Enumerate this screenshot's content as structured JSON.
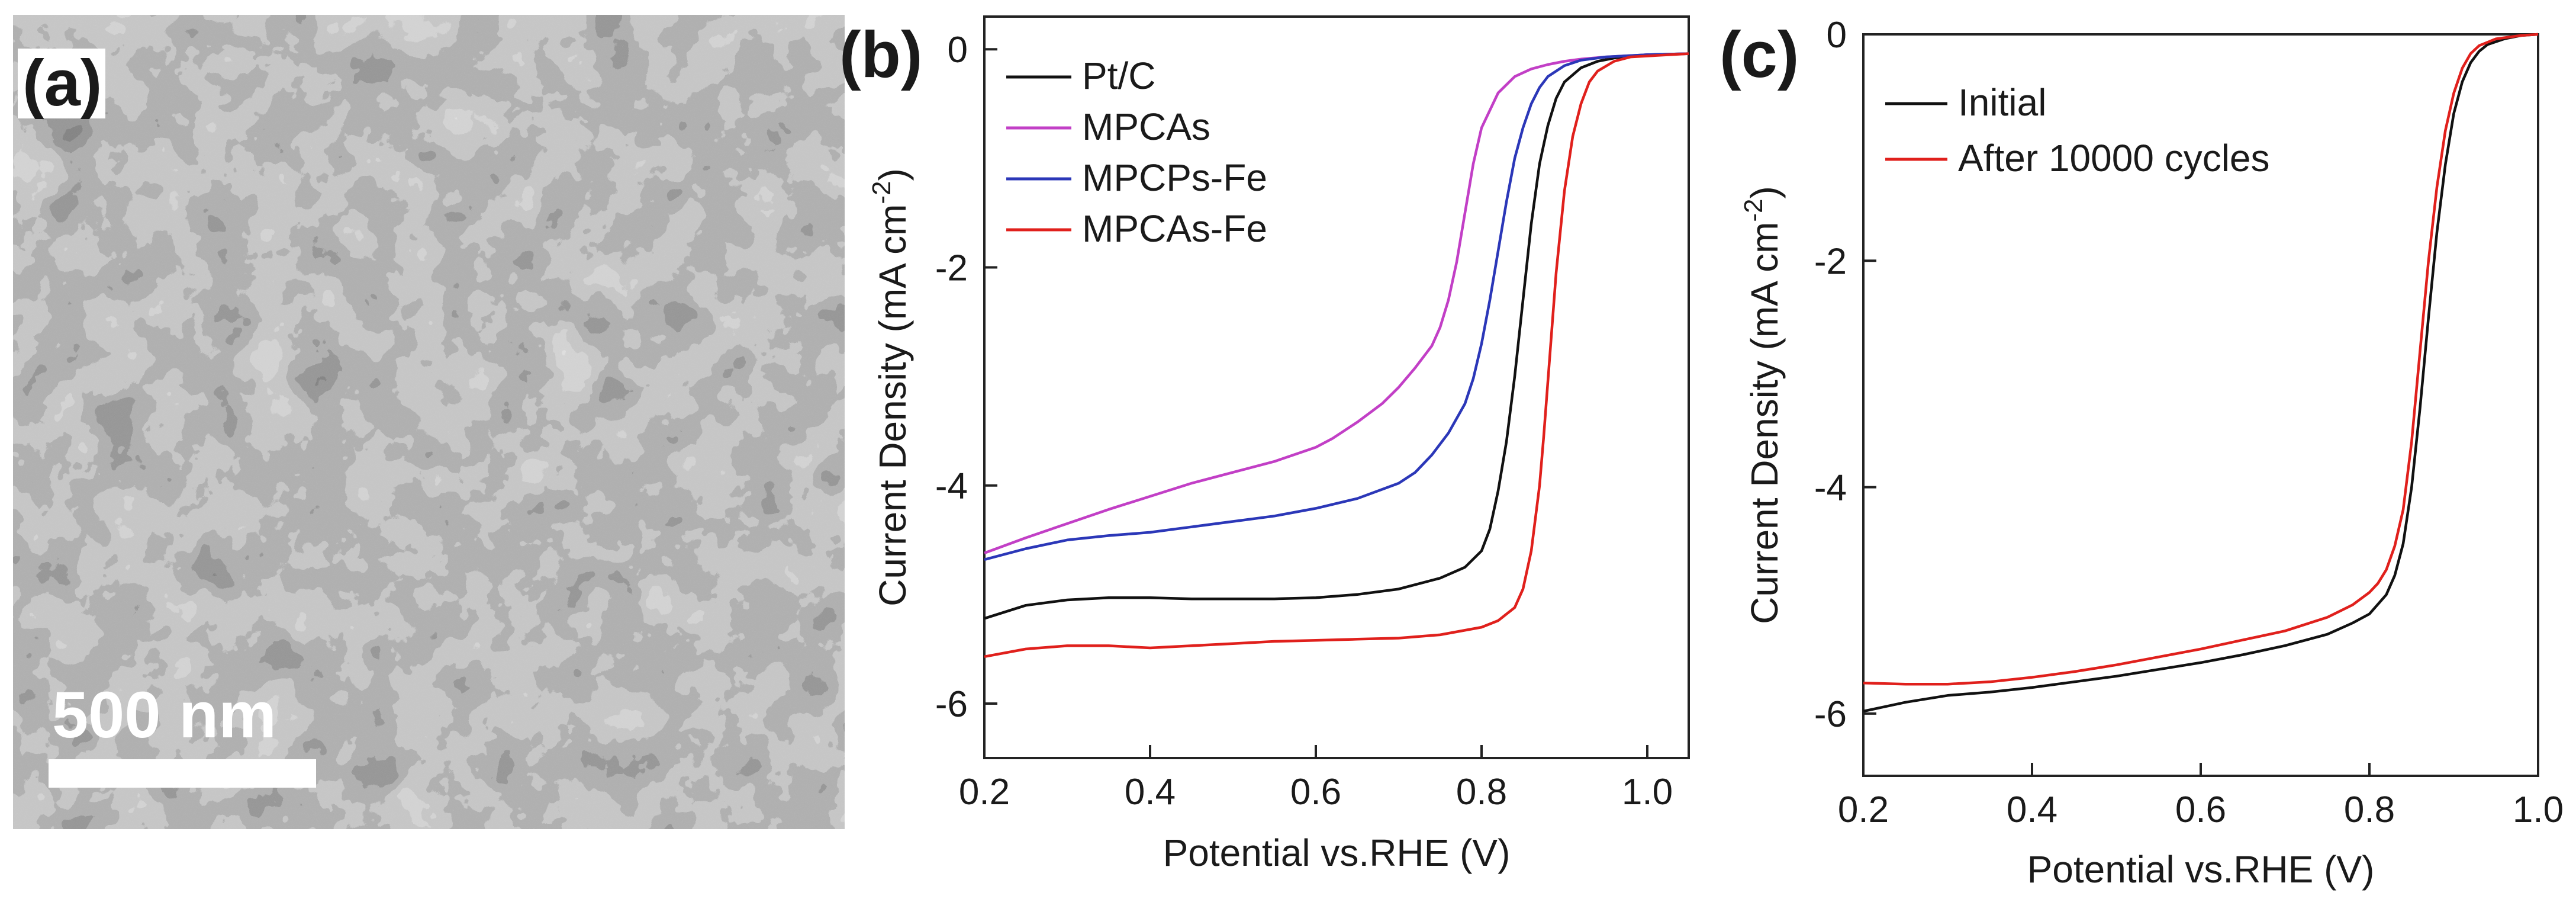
{
  "panels": {
    "a": {
      "letter": "(a)",
      "scale_bar": "500 nm",
      "image": "sem-micrograph-porous-carbon"
    },
    "b": {
      "letter": "(b)"
    },
    "c": {
      "letter": "(c)"
    }
  },
  "colors": {
    "black": "#111111",
    "magenta": "#c23fc6",
    "blue": "#2b37b8",
    "red": "#e0201c"
  },
  "chart_data": [
    {
      "id": "b",
      "type": "line",
      "title": "",
      "xlabel": "Potential vs.RHE (V)",
      "ylabel": "Current Density (mA cm",
      "ylabel_sup": "-2",
      "ylabel_end": ")",
      "xlim": [
        0.2,
        1.05
      ],
      "ylim": [
        -6.5,
        0.3
      ],
      "xticks": [
        0.2,
        0.4,
        0.6,
        0.8,
        1.0
      ],
      "xtick_labels": [
        "0.2",
        "0.4",
        "0.6",
        "0.8",
        "1.0"
      ],
      "yticks": [
        0,
        -2,
        -4,
        -6
      ],
      "ytick_labels": [
        "0",
        "-2",
        "-4",
        "-6"
      ],
      "grid": false,
      "legend_position": "top-left",
      "series": [
        {
          "name": "Pt/C",
          "color": "#111111",
          "x": [
            0.2,
            0.25,
            0.3,
            0.35,
            0.4,
            0.45,
            0.5,
            0.55,
            0.6,
            0.65,
            0.7,
            0.75,
            0.78,
            0.8,
            0.81,
            0.82,
            0.83,
            0.84,
            0.85,
            0.86,
            0.87,
            0.88,
            0.89,
            0.9,
            0.92,
            0.94,
            0.96,
            0.98,
            1.0,
            1.05
          ],
          "y": [
            -5.22,
            -5.1,
            -5.05,
            -5.03,
            -5.03,
            -5.04,
            -5.04,
            -5.04,
            -5.03,
            -5.0,
            -4.95,
            -4.85,
            -4.75,
            -4.6,
            -4.4,
            -4.05,
            -3.6,
            -3.0,
            -2.3,
            -1.6,
            -1.05,
            -0.7,
            -0.45,
            -0.3,
            -0.17,
            -0.11,
            -0.08,
            -0.06,
            -0.05,
            -0.04
          ]
        },
        {
          "name": "MPCAs",
          "color": "#c23fc6",
          "x": [
            0.2,
            0.25,
            0.3,
            0.35,
            0.4,
            0.45,
            0.5,
            0.55,
            0.6,
            0.62,
            0.65,
            0.68,
            0.7,
            0.72,
            0.74,
            0.75,
            0.76,
            0.77,
            0.78,
            0.79,
            0.8,
            0.82,
            0.84,
            0.86,
            0.88,
            0.9,
            0.92,
            0.95,
            1.0,
            1.05
          ],
          "y": [
            -4.62,
            -4.48,
            -4.35,
            -4.22,
            -4.1,
            -3.98,
            -3.88,
            -3.78,
            -3.65,
            -3.57,
            -3.42,
            -3.25,
            -3.1,
            -2.92,
            -2.72,
            -2.55,
            -2.3,
            -1.95,
            -1.5,
            -1.05,
            -0.72,
            -0.4,
            -0.25,
            -0.18,
            -0.14,
            -0.11,
            -0.09,
            -0.07,
            -0.05,
            -0.04
          ]
        },
        {
          "name": "MPCPs-Fe",
          "color": "#2b37b8",
          "x": [
            0.2,
            0.25,
            0.3,
            0.35,
            0.4,
            0.45,
            0.5,
            0.55,
            0.6,
            0.65,
            0.7,
            0.72,
            0.74,
            0.76,
            0.78,
            0.79,
            0.8,
            0.81,
            0.82,
            0.83,
            0.84,
            0.85,
            0.86,
            0.87,
            0.88,
            0.9,
            0.92,
            0.95,
            1.0,
            1.05
          ],
          "y": [
            -4.68,
            -4.58,
            -4.5,
            -4.46,
            -4.43,
            -4.38,
            -4.33,
            -4.28,
            -4.21,
            -4.12,
            -3.98,
            -3.88,
            -3.72,
            -3.52,
            -3.25,
            -3.02,
            -2.7,
            -2.3,
            -1.85,
            -1.4,
            -1.0,
            -0.72,
            -0.5,
            -0.35,
            -0.25,
            -0.15,
            -0.1,
            -0.07,
            -0.05,
            -0.04
          ]
        },
        {
          "name": "MPCAs-Fe",
          "color": "#e0201c",
          "x": [
            0.2,
            0.25,
            0.3,
            0.35,
            0.4,
            0.45,
            0.5,
            0.55,
            0.6,
            0.65,
            0.7,
            0.75,
            0.8,
            0.82,
            0.84,
            0.85,
            0.86,
            0.87,
            0.875,
            0.88,
            0.885,
            0.89,
            0.9,
            0.91,
            0.92,
            0.93,
            0.94,
            0.96,
            0.98,
            1.05
          ],
          "y": [
            -5.57,
            -5.5,
            -5.47,
            -5.47,
            -5.49,
            -5.47,
            -5.45,
            -5.43,
            -5.42,
            -5.41,
            -5.4,
            -5.37,
            -5.3,
            -5.24,
            -5.12,
            -4.95,
            -4.6,
            -4.0,
            -3.55,
            -3.05,
            -2.55,
            -2.05,
            -1.3,
            -0.8,
            -0.5,
            -0.3,
            -0.2,
            -0.11,
            -0.07,
            -0.04
          ]
        }
      ]
    },
    {
      "id": "c",
      "type": "line",
      "title": "",
      "xlabel": "Potential vs.RHE (V)",
      "ylabel": "Current Density (mA cm",
      "ylabel_sup": "-2",
      "ylabel_end": ")",
      "xlim": [
        0.2,
        1.0
      ],
      "ylim": [
        -6.55,
        0
      ],
      "xticks": [
        0.2,
        0.4,
        0.6,
        0.8,
        1.0
      ],
      "xtick_labels": [
        "0.2",
        "0.4",
        "0.6",
        "0.8",
        "1.0"
      ],
      "yticks": [
        0,
        -2,
        -4,
        -6
      ],
      "ytick_labels": [
        "0",
        "-2",
        "-4",
        "-6"
      ],
      "grid": false,
      "legend_position": "top-left",
      "series": [
        {
          "name": "Initial",
          "color": "#111111",
          "x": [
            0.2,
            0.25,
            0.3,
            0.35,
            0.4,
            0.45,
            0.5,
            0.55,
            0.6,
            0.65,
            0.7,
            0.75,
            0.78,
            0.8,
            0.82,
            0.83,
            0.84,
            0.85,
            0.86,
            0.87,
            0.88,
            0.89,
            0.9,
            0.91,
            0.92,
            0.93,
            0.94,
            0.96,
            0.98,
            1.0
          ],
          "y": [
            -5.98,
            -5.9,
            -5.84,
            -5.81,
            -5.77,
            -5.72,
            -5.67,
            -5.61,
            -5.55,
            -5.48,
            -5.4,
            -5.3,
            -5.2,
            -5.12,
            -4.95,
            -4.78,
            -4.5,
            -4.0,
            -3.3,
            -2.5,
            -1.75,
            -1.15,
            -0.7,
            -0.42,
            -0.25,
            -0.15,
            -0.09,
            -0.04,
            -0.01,
            0.0
          ]
        },
        {
          "name": "After 10000 cycles",
          "color": "#e0201c",
          "x": [
            0.2,
            0.25,
            0.3,
            0.35,
            0.4,
            0.45,
            0.5,
            0.55,
            0.6,
            0.65,
            0.7,
            0.75,
            0.78,
            0.8,
            0.81,
            0.82,
            0.83,
            0.84,
            0.85,
            0.86,
            0.87,
            0.88,
            0.89,
            0.9,
            0.91,
            0.92,
            0.93,
            0.95,
            0.98,
            1.0
          ],
          "y": [
            -5.73,
            -5.74,
            -5.74,
            -5.72,
            -5.68,
            -5.63,
            -5.57,
            -5.5,
            -5.43,
            -5.35,
            -5.27,
            -5.15,
            -5.04,
            -4.93,
            -4.85,
            -4.73,
            -4.52,
            -4.2,
            -3.6,
            -2.8,
            -2.0,
            -1.35,
            -0.85,
            -0.52,
            -0.3,
            -0.17,
            -0.1,
            -0.04,
            -0.01,
            0.0
          ]
        }
      ]
    }
  ]
}
